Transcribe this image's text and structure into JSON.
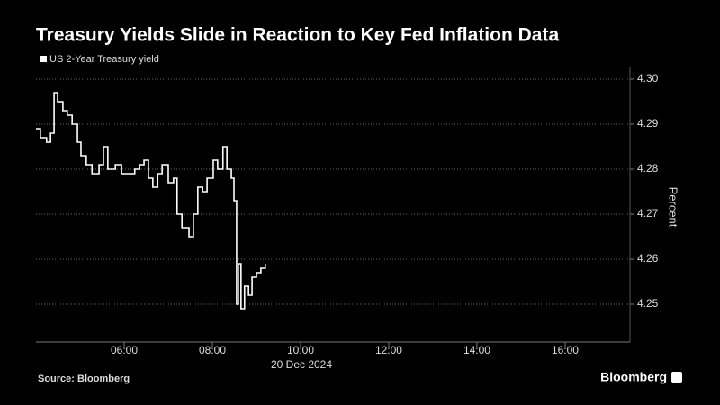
{
  "chart_data": {
    "type": "line",
    "title": "Treasury Yields Slide in Reaction to Key Fed Inflation Data",
    "x_label": "20 Dec 2024",
    "y_label": "Percent",
    "source": "Source: Bloomberg",
    "brand": "Bloomberg",
    "step": true,
    "grid": true,
    "x": [
      4.0,
      4.1,
      4.24,
      4.33,
      4.41,
      4.49,
      4.61,
      4.71,
      4.82,
      4.94,
      5.02,
      5.14,
      5.27,
      5.43,
      5.53,
      5.63,
      5.8,
      5.94,
      6.14,
      6.24,
      6.35,
      6.45,
      6.55,
      6.65,
      6.76,
      6.86,
      7.0,
      7.12,
      7.2,
      7.31,
      7.47,
      7.57,
      7.67,
      7.78,
      7.88,
      8.02,
      8.12,
      8.24,
      8.33,
      8.43,
      8.49,
      8.55,
      8.59,
      8.65,
      8.73,
      8.82,
      8.9,
      9.0,
      9.1,
      9.2
    ],
    "series": [
      {
        "name": "US 2-Year Treasury yield",
        "color": "#ffffff",
        "values": [
          4.289,
          4.287,
          4.286,
          4.288,
          4.297,
          4.295,
          4.293,
          4.292,
          4.29,
          4.286,
          4.283,
          4.281,
          4.279,
          4.281,
          4.285,
          4.28,
          4.281,
          4.279,
          4.279,
          4.28,
          4.281,
          4.282,
          4.278,
          4.276,
          4.279,
          4.281,
          4.277,
          4.278,
          4.27,
          4.267,
          4.265,
          4.27,
          4.276,
          4.275,
          4.278,
          4.282,
          4.28,
          4.285,
          4.28,
          4.278,
          4.273,
          4.25,
          4.259,
          4.249,
          4.254,
          4.252,
          4.256,
          4.257,
          4.258,
          4.259
        ]
      }
    ],
    "xlim": [
      4,
      17.47
    ],
    "xticks": [
      {
        "value": 6,
        "label": "06:00"
      },
      {
        "value": 8,
        "label": "08:00"
      },
      {
        "value": 10,
        "label": "10:00"
      },
      {
        "value": 12,
        "label": "12:00"
      },
      {
        "value": 14,
        "label": "14:00"
      },
      {
        "value": 16,
        "label": "16:00"
      }
    ],
    "ylim": [
      4.2416,
      4.3026
    ],
    "yticks": [
      4.25,
      4.26,
      4.27,
      4.28,
      4.29,
      {
        "value": 4.3,
        "label": "4.30"
      }
    ]
  }
}
